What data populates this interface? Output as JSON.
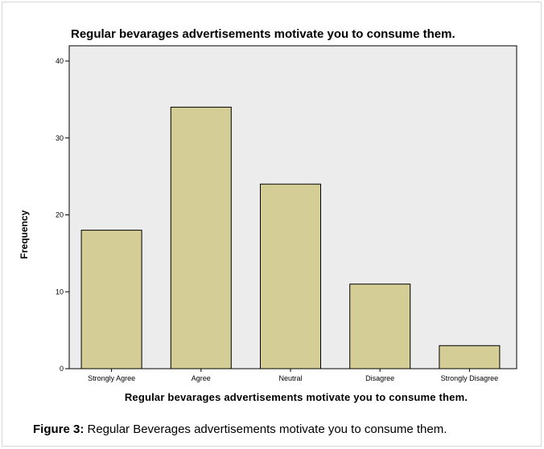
{
  "caption": {
    "label": "Figure 3:",
    "text": " Regular Beverages advertisements motivate you to consume them."
  },
  "chart_data": {
    "type": "bar",
    "title": "Regular bevarages advertisements motivate you to consume them.",
    "xlabel": "Regular bevarages advertisements motivate you to consume them.",
    "ylabel": "Frequency",
    "categories": [
      "Strongly Agree",
      "Agree",
      "Neutral",
      "Disagree",
      "Strongly Disagree"
    ],
    "values": [
      18,
      34,
      24,
      11,
      3
    ],
    "ylim": [
      0,
      40
    ],
    "yticks": [
      0,
      10,
      20,
      30,
      40
    ],
    "grid": false,
    "legend": "none",
    "bar_color": "#d4cd95",
    "plot_background": "#ececec"
  }
}
